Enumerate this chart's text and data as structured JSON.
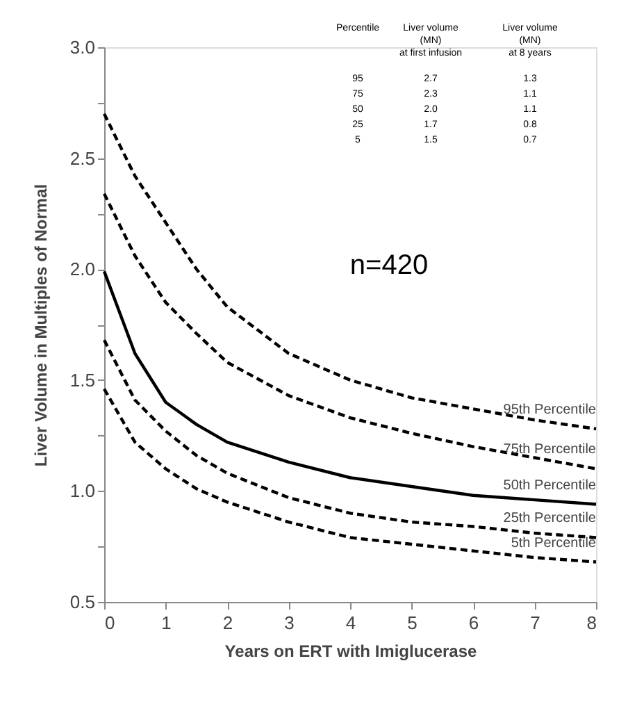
{
  "chart_data": {
    "type": "line",
    "xlabel": "Years on ERT with Imiglucerase",
    "ylabel": "Liver Volume in Multiples of Normal",
    "x": [
      0,
      0.5,
      1,
      1.5,
      2,
      3,
      4,
      5,
      6,
      7,
      8
    ],
    "series": [
      {
        "name": "95th Percentile",
        "color": "#000000",
        "line_style": "dashed",
        "values": [
          2.7,
          2.42,
          2.21,
          2.0,
          1.83,
          1.62,
          1.5,
          1.42,
          1.37,
          1.32,
          1.28
        ]
      },
      {
        "name": "75th Percentile",
        "color": "#000000",
        "line_style": "dashed",
        "values": [
          2.34,
          2.06,
          1.85,
          1.71,
          1.58,
          1.43,
          1.33,
          1.26,
          1.2,
          1.15,
          1.1
        ]
      },
      {
        "name": "50th Percentile",
        "color": "#000000",
        "line_style": "solid",
        "values": [
          1.99,
          1.62,
          1.4,
          1.3,
          1.22,
          1.13,
          1.06,
          1.02,
          0.98,
          0.96,
          0.94
        ]
      },
      {
        "name": "25th Percentile",
        "color": "#000000",
        "line_style": "dashed",
        "values": [
          1.68,
          1.41,
          1.27,
          1.16,
          1.08,
          0.97,
          0.9,
          0.86,
          0.84,
          0.81,
          0.79
        ]
      },
      {
        "name": "5th Percentile",
        "color": "#000000",
        "line_style": "dashed",
        "values": [
          1.46,
          1.22,
          1.1,
          1.01,
          0.95,
          0.86,
          0.79,
          0.76,
          0.73,
          0.7,
          0.68
        ]
      }
    ],
    "xlim": [
      0,
      8
    ],
    "xticks": [
      0,
      1,
      2,
      3,
      4,
      5,
      6,
      7,
      8
    ],
    "ylim": [
      0.5,
      3.0
    ],
    "yticks": [
      {
        "value": 0.5,
        "label": "0.5"
      },
      {
        "value": 0.75,
        "label": null
      },
      {
        "value": 1.0,
        "label": "1.0"
      },
      {
        "value": 1.25,
        "label": null
      },
      {
        "value": 1.5,
        "label": "1.5"
      },
      {
        "value": 1.75,
        "label": null
      },
      {
        "value": 2.0,
        "label": "2.0"
      },
      {
        "value": 2.25,
        "label": null
      },
      {
        "value": 2.5,
        "label": "2.5"
      },
      {
        "value": 2.75,
        "label": null
      },
      {
        "value": 3.0,
        "label": "3.0"
      }
    ],
    "grid": false,
    "legend": false,
    "marker": "none",
    "annotations": [
      "n=420",
      "Percentile",
      "Liver volume\n(MN)\nat first infusion",
      "Liver volume\n(MN)\nat 8 years",
      "95",
      "2.7",
      "1.3",
      "75",
      "2.3",
      "1.1",
      "50",
      "2.0",
      "1.1",
      "25",
      "1.7",
      "0.8",
      "5",
      "1.5",
      "0.7"
    ]
  }
}
